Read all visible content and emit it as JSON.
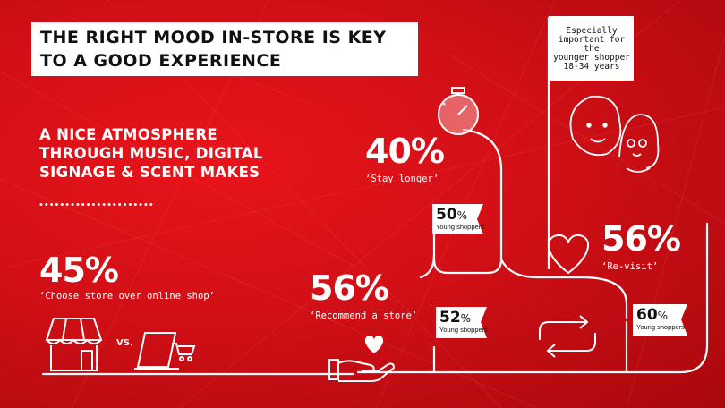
{
  "headline": {
    "line1": "THE RIGHT MOOD IN-STORE IS KEY",
    "line2": "TO A GOOD EXPERIENCE"
  },
  "subheading": "A NICE ATMOSPHERE\nTHROUGH MUSIC, DIGITAL\nSIGNAGE & SCENT MAKES",
  "dots": "••••••••••••••••••••••",
  "stats": {
    "choose_store": {
      "value": "45%",
      "caption": "‘Choose store over online shop’"
    },
    "recommend": {
      "value": "56%",
      "caption": "‘Recommend a store’"
    },
    "stay_longer": {
      "value": "40%",
      "caption": "‘Stay longer’"
    },
    "revisit": {
      "value": "56%",
      "caption": "‘Re-visit’"
    }
  },
  "young_flags": [
    {
      "value": "50",
      "unit": "%",
      "label": "Young shoppers"
    },
    {
      "value": "52",
      "unit": "%",
      "label": "Young shoppers"
    },
    {
      "value": "60",
      "unit": "%",
      "label": "Young shoppers"
    }
  ],
  "young_note": {
    "line1": "Especially",
    "line2": "important for the",
    "line3": "younger shopper",
    "line4": "18-34 years"
  },
  "vs_label": "VS.",
  "colors": {
    "background": "#d10f16",
    "line": "#ffffff",
    "text_dark": "#111111"
  }
}
